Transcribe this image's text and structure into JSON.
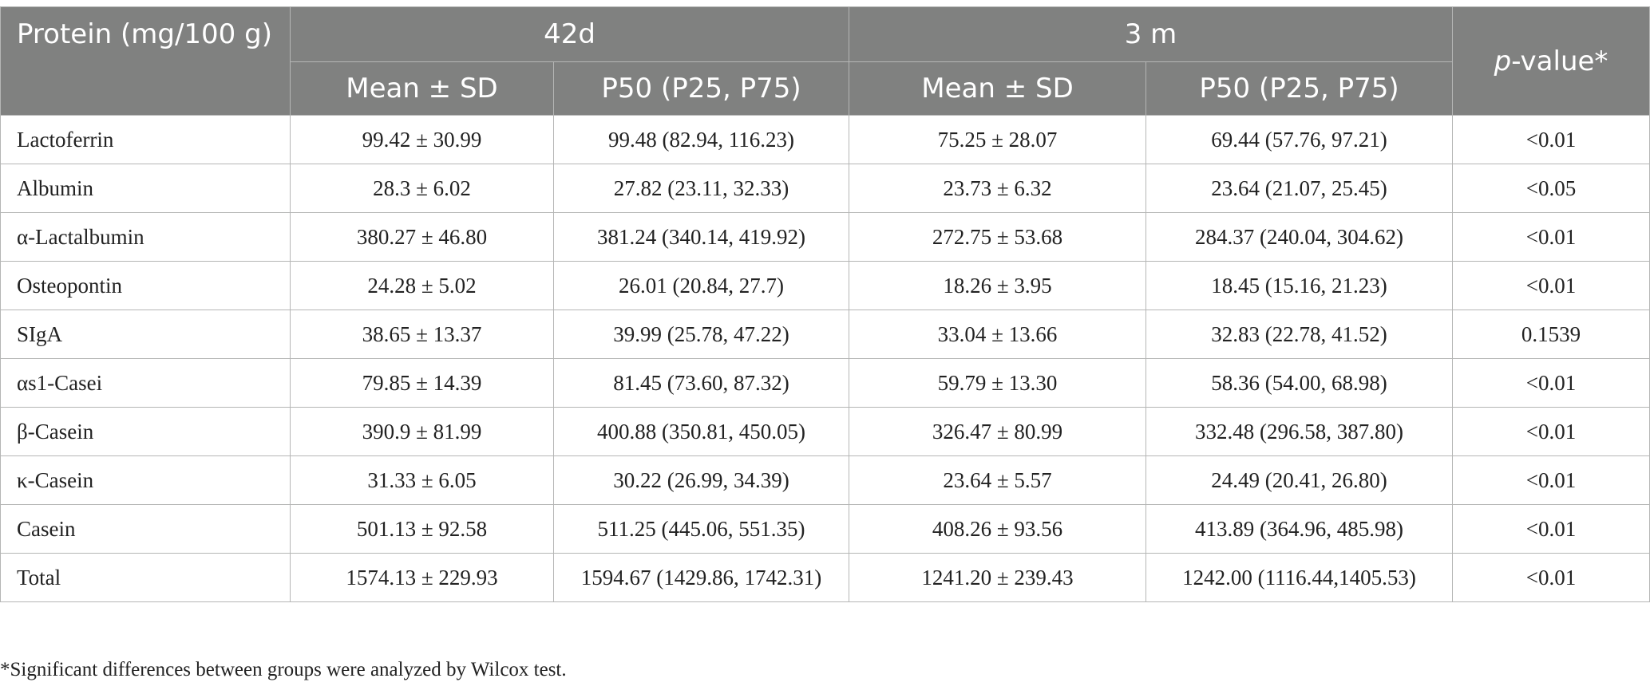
{
  "table": {
    "header": {
      "protein_col": "Protein (mg/100 g)",
      "group_42d": "42d",
      "group_3m": "3 m",
      "pvalue_italic": "p",
      "pvalue_rest": "-value*",
      "mean_sd": "Mean ± SD",
      "p50": "P50 (P25, P75)"
    },
    "rows": [
      {
        "protein": "Lactoferrin",
        "d42_mean": "99.42 ± 30.99",
        "d42_p50": "99.48 (82.94, 116.23)",
        "m3_mean": "75.25 ± 28.07",
        "m3_p50": "69.44 (57.76, 97.21)",
        "p": "<0.01"
      },
      {
        "protein": "Albumin",
        "d42_mean": "28.3 ± 6.02",
        "d42_p50": "27.82 (23.11, 32.33)",
        "m3_mean": "23.73 ± 6.32",
        "m3_p50": "23.64 (21.07, 25.45)",
        "p": "<0.05"
      },
      {
        "protein": "α-Lactalbumin",
        "d42_mean": "380.27 ± 46.80",
        "d42_p50": "381.24 (340.14, 419.92)",
        "m3_mean": "272.75 ± 53.68",
        "m3_p50": "284.37 (240.04, 304.62)",
        "p": "<0.01"
      },
      {
        "protein": "Osteopontin",
        "d42_mean": "24.28 ± 5.02",
        "d42_p50": "26.01 (20.84, 27.7)",
        "m3_mean": "18.26 ± 3.95",
        "m3_p50": "18.45 (15.16, 21.23)",
        "p": "<0.01"
      },
      {
        "protein": "SIgA",
        "d42_mean": "38.65 ± 13.37",
        "d42_p50": "39.99 (25.78, 47.22)",
        "m3_mean": "33.04 ± 13.66",
        "m3_p50": "32.83 (22.78, 41.52)",
        "p": "0.1539"
      },
      {
        "protein": "αs1-Casei",
        "d42_mean": "79.85 ± 14.39",
        "d42_p50": "81.45 (73.60, 87.32)",
        "m3_mean": "59.79 ± 13.30",
        "m3_p50": "58.36 (54.00, 68.98)",
        "p": "<0.01"
      },
      {
        "protein": "β-Casein",
        "d42_mean": "390.9 ± 81.99",
        "d42_p50": "400.88 (350.81, 450.05)",
        "m3_mean": "326.47 ± 80.99",
        "m3_p50": "332.48 (296.58, 387.80)",
        "p": "<0.01"
      },
      {
        "protein": "κ-Casein",
        "d42_mean": "31.33 ± 6.05",
        "d42_p50": "30.22 (26.99, 34.39)",
        "m3_mean": "23.64 ± 5.57",
        "m3_p50": "24.49 (20.41, 26.80)",
        "p": "<0.01"
      },
      {
        "protein": "Casein",
        "d42_mean": "501.13 ± 92.58",
        "d42_p50": "511.25 (445.06, 551.35)",
        "m3_mean": "408.26 ± 93.56",
        "m3_p50": "413.89 (364.96, 485.98)",
        "p": "<0.01"
      },
      {
        "protein": "Total",
        "d42_mean": "1574.13 ± 229.93",
        "d42_p50": "1594.67 (1429.86, 1742.31)",
        "m3_mean": "1241.20 ± 239.43",
        "m3_p50": "1242.00 (1116.44,1405.53)",
        "p": "<0.01"
      }
    ]
  },
  "footnote": "*Significant differences between groups were analyzed by Wilcox test.",
  "colors": {
    "header_bg": "#808180",
    "border": "#b5b6b5",
    "text": "#222222"
  }
}
